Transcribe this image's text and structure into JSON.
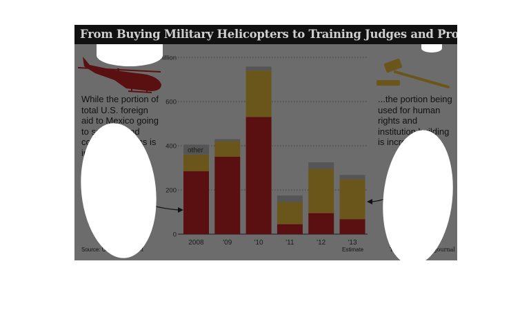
{
  "title": "From Buying Military Helicopters to Training Judges and Prosecutors",
  "left_note": "While the portion of total U.S. foreign aid to Mexico going to security and counternarcotics is in decline...",
  "right_note": "...the portion being used for human rights and institution building is increasing.",
  "source": "Source: U.S. government",
  "publisher": "The Wall Street Journal",
  "estimate_label": "Estimate",
  "icons": {
    "left": "helicopter-icon",
    "right": "gavel-icon"
  },
  "colors": {
    "security": "#5a1010",
    "institution": "#6a551a",
    "other": "#555555",
    "panel": "#6c6c6c"
  },
  "chart_data": {
    "type": "bar",
    "stacked": true,
    "categories": [
      "2008",
      "'09",
      "'10",
      "'11",
      "'12",
      "'13"
    ],
    "series": [
      {
        "key": "security",
        "values": [
          285,
          350,
          530,
          45,
          95,
          68
        ]
      },
      {
        "key": "institution",
        "values": [
          75,
          70,
          210,
          100,
          200,
          180
        ]
      },
      {
        "name": "other",
        "values": [
          45,
          10,
          18,
          30,
          30,
          20
        ]
      }
    ],
    "y_ticks": [
      {
        "value": 0,
        "label": "0"
      },
      {
        "value": 200,
        "label": "200"
      },
      {
        "value": 400,
        "label": "400"
      },
      {
        "value": 600,
        "label": "600"
      },
      {
        "value": 800,
        "label": "$800 million"
      }
    ],
    "ylim": [
      0,
      800
    ],
    "grid": true
  }
}
